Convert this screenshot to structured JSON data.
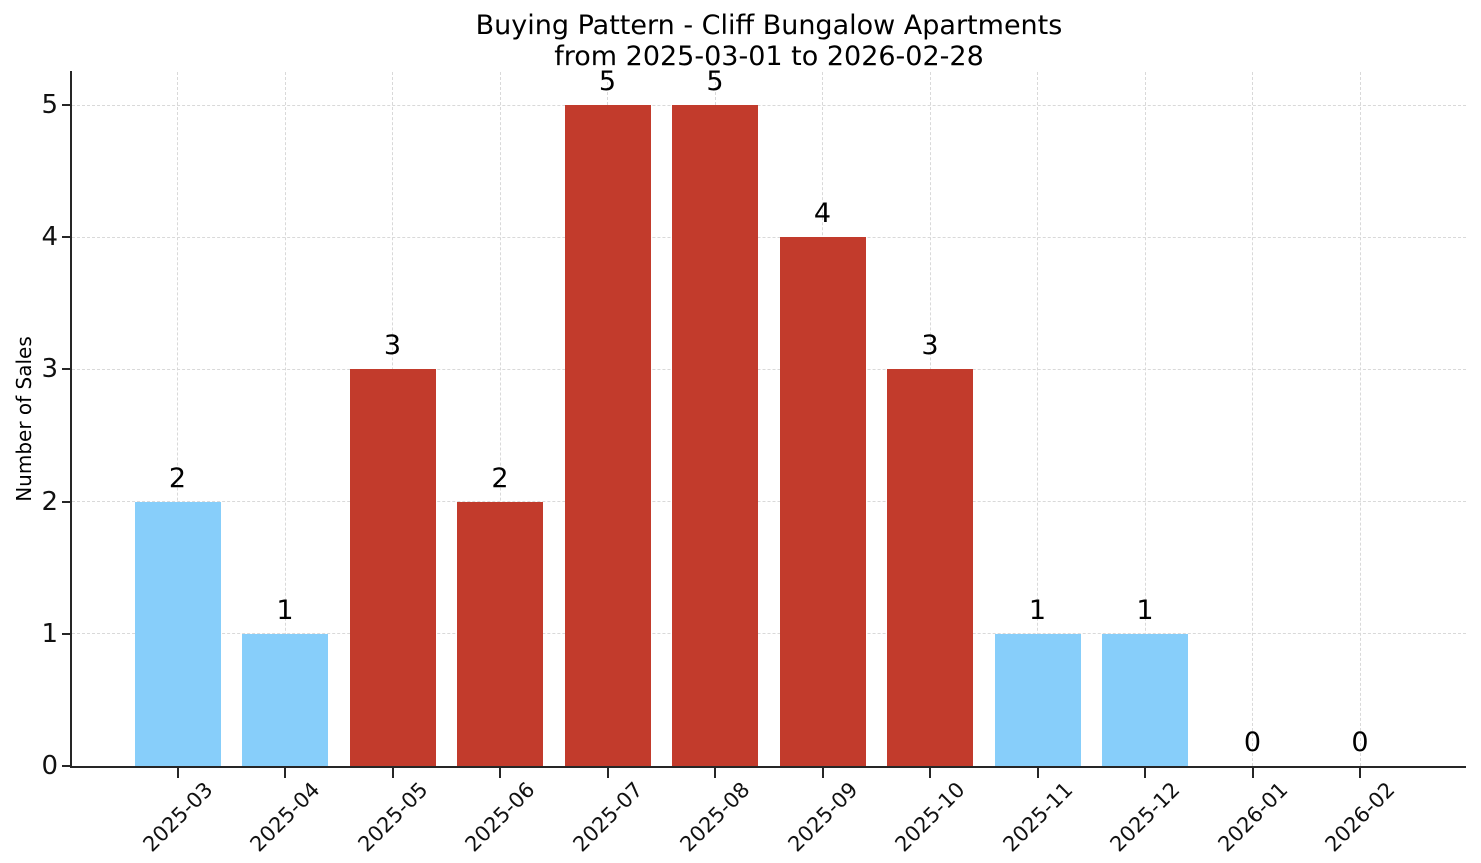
{
  "chart_data": {
    "type": "bar",
    "title_line1": "Buying Pattern - Cliff Bungalow Apartments",
    "title_line2": "from 2025-03-01 to 2026-02-28",
    "ylabel": "Number of Sales",
    "xlabel": "",
    "categories": [
      "2025-03",
      "2025-04",
      "2025-05",
      "2025-06",
      "2025-07",
      "2025-08",
      "2025-09",
      "2025-10",
      "2025-11",
      "2025-12",
      "2026-01",
      "2026-02"
    ],
    "values": [
      2,
      1,
      3,
      2,
      5,
      5,
      4,
      3,
      1,
      1,
      0,
      0
    ],
    "bar_colors": [
      "#87CEFA",
      "#87CEFA",
      "#C23B2C",
      "#C23B2C",
      "#C23B2C",
      "#C23B2C",
      "#C23B2C",
      "#C23B2C",
      "#87CEFA",
      "#87CEFA",
      null,
      null
    ],
    "value_labels": [
      "2",
      "1",
      "3",
      "2",
      "5",
      "5",
      "4",
      "3",
      "1",
      "1",
      "0",
      "0"
    ],
    "yticks": [
      "0",
      "1",
      "2",
      "3",
      "4",
      "5"
    ],
    "ylim": [
      0,
      5.25
    ],
    "grid": true,
    "legend": "none",
    "colors": {
      "blue_bar": "#87CEFA",
      "red_bar": "#C23B2C",
      "axis": "#262626",
      "grid": "#d9d9d9",
      "text": "#000000"
    }
  }
}
